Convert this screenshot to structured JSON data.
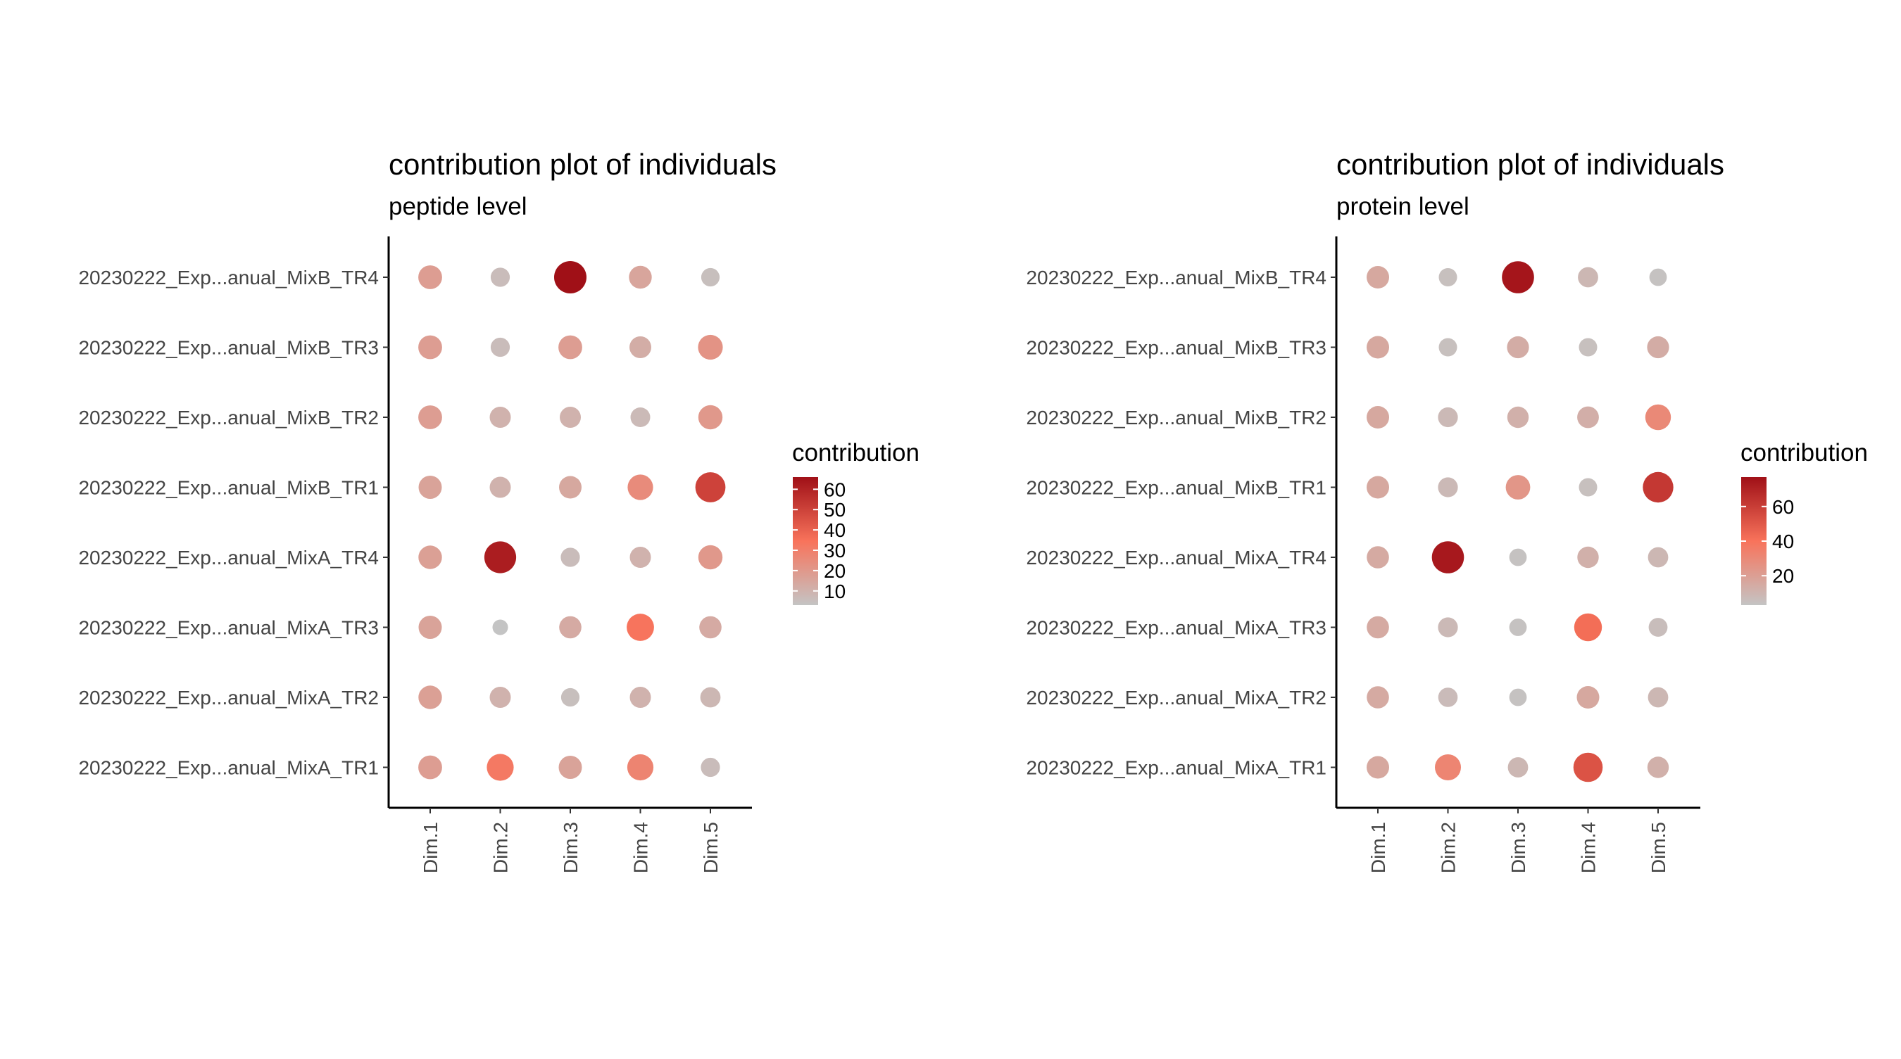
{
  "chart_data": [
    {
      "type": "dot",
      "title": "contribution plot of individuals",
      "subtitle": "peptide level",
      "categories": [
        "20230222_Exp...anual_MixB_TR4",
        "20230222_Exp...anual_MixB_TR3",
        "20230222_Exp...anual_MixB_TR2",
        "20230222_Exp...anual_MixB_TR1",
        "20230222_Exp...anual_MixA_TR4",
        "20230222_Exp...anual_MixA_TR3",
        "20230222_Exp...anual_MixA_TR2",
        "20230222_Exp...anual_MixA_TR1"
      ],
      "dims": [
        "Dim.1",
        "Dim.2",
        "Dim.3",
        "Dim.4",
        "Dim.5"
      ],
      "values": [
        [
          18,
          6,
          66,
          15,
          5
        ],
        [
          18,
          6,
          18,
          12,
          22
        ],
        [
          18,
          10,
          10,
          7,
          20
        ],
        [
          16,
          10,
          14,
          25,
          50
        ],
        [
          17,
          62,
          6,
          10,
          20
        ],
        [
          16,
          3,
          13,
          34,
          13
        ],
        [
          17,
          10,
          5,
          10,
          8
        ],
        [
          18,
          32,
          16,
          28,
          6
        ]
      ],
      "legend": {
        "title": "contribution",
        "ticks": [
          10,
          20,
          30,
          40,
          50,
          60
        ],
        "min": 3,
        "max": 66
      },
      "colors": {
        "low": "#c4c4c4",
        "mid": "#f8735b",
        "high": "#a01017"
      }
    },
    {
      "type": "dot",
      "title": "contribution plot of individuals",
      "subtitle": "protein level",
      "categories": [
        "20230222_Exp...anual_MixB_TR4",
        "20230222_Exp...anual_MixB_TR3",
        "20230222_Exp...anual_MixB_TR2",
        "20230222_Exp...anual_MixB_TR1",
        "20230222_Exp...anual_MixA_TR4",
        "20230222_Exp...anual_MixA_TR3",
        "20230222_Exp...anual_MixA_TR2",
        "20230222_Exp...anual_MixA_TR1"
      ],
      "dims": [
        "Dim.1",
        "Dim.2",
        "Dim.3",
        "Dim.4",
        "Dim.5"
      ],
      "values": [
        [
          16,
          5,
          75,
          9,
          4
        ],
        [
          16,
          5,
          14,
          5,
          14
        ],
        [
          16,
          8,
          12,
          13,
          30
        ],
        [
          16,
          8,
          24,
          5,
          62
        ],
        [
          15,
          74,
          4,
          12,
          9
        ],
        [
          15,
          8,
          4,
          42,
          6
        ],
        [
          15,
          7,
          4,
          16,
          9
        ],
        [
          16,
          32,
          9,
          52,
          12
        ]
      ],
      "legend": {
        "title": "contribution",
        "ticks": [
          20,
          40,
          60
        ],
        "min": 3,
        "max": 77
      },
      "colors": {
        "low": "#c4c4c4",
        "mid": "#f8735b",
        "high": "#a01017"
      }
    }
  ]
}
